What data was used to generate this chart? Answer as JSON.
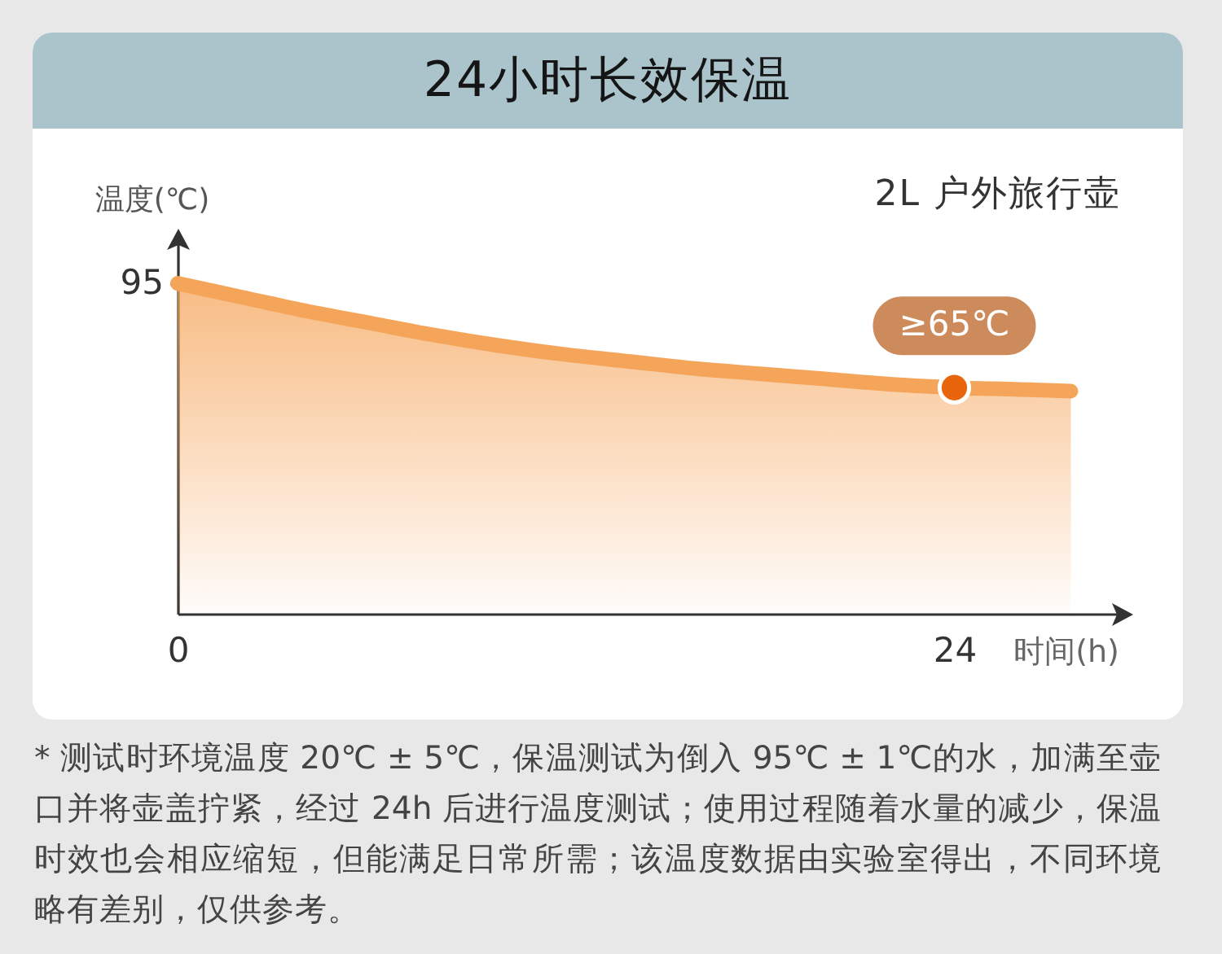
{
  "chart_data": {
    "type": "area",
    "title": "24小时长效保温",
    "subtitle": "2L 户外旅行壶",
    "xlabel": "时间(h)",
    "ylabel": "温度(℃)",
    "xlim": [
      0,
      29.4
    ],
    "xticks": [
      0,
      24
    ],
    "ylim": [
      0,
      110
    ],
    "yticks": [
      95
    ],
    "grid": false,
    "series": [
      {
        "color": "#f5a55a",
        "x": [
          0,
          2,
          4,
          6,
          8,
          10,
          12,
          14,
          16,
          18,
          20,
          22,
          24,
          26,
          27.6
        ],
        "values": [
          95,
          91,
          87,
          83.5,
          80,
          77,
          74.5,
          72.5,
          70.5,
          69,
          67.5,
          66,
          65,
          64.5,
          64
        ]
      },
      {
        "type": "scatter",
        "color": "#e8650e",
        "x": [
          24
        ],
        "values": [
          65
        ],
        "value_labels": [
          "≥65℃"
        ]
      }
    ],
    "annotations": [
      "* 测试时环境温度 20℃ ± 5℃，保温测试为倒入 95℃ ± 1℃的水，加满至壶口并将壶盖拧紧，经过 24h 后进行温度测试；使用过程随着水量的减少，保温时效也会相应缩短，但能满足日常所需；该温度数据由实验室得出，不同环境略有差别，仅供参考。"
    ]
  }
}
